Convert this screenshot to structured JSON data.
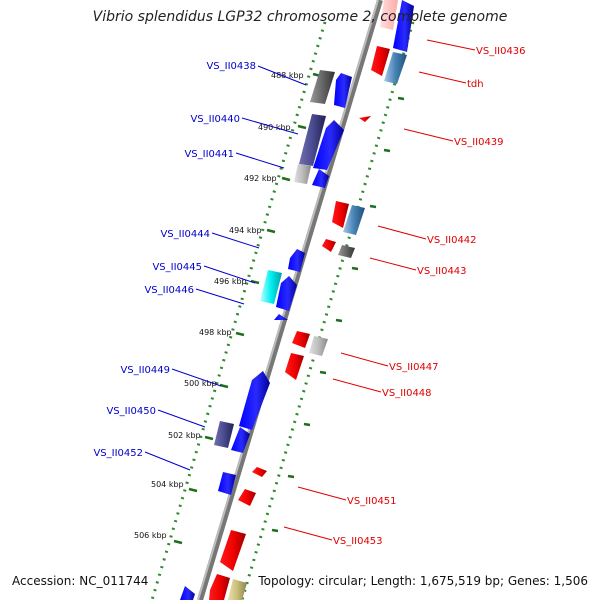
{
  "title": "Vibrio splendidus LGP32 chromosome 2, complete genome",
  "accession": "Accession: NC_011744",
  "summary": "Topology: circular; Length: 1,675,519 bp; Genes: 1,506",
  "colors": {
    "forward_label": "#0000cc",
    "reverse_label": "#e00000",
    "tick": "#2e8b2e",
    "backbone": "#8a8a8a"
  },
  "ticks": [
    "488 kbp",
    "490 kbp",
    "492 kbp",
    "494 kbp",
    "496 kbp",
    "498 kbp",
    "500 kbp",
    "502 kbp",
    "504 kbp",
    "506 kbp"
  ],
  "forward_labels": [
    "VS_II0438",
    "VS_II0440",
    "VS_II0441",
    "VS_II0444",
    "VS_II0445",
    "VS_II0446",
    "VS_II0449",
    "VS_II0450",
    "VS_II0452"
  ],
  "reverse_labels": [
    "VS_II0436",
    "tdh",
    "VS_II0439",
    "VS_II0442",
    "VS_II0443",
    "VS_II0447",
    "VS_II0448",
    "VS_II0451",
    "VS_II0453"
  ]
}
